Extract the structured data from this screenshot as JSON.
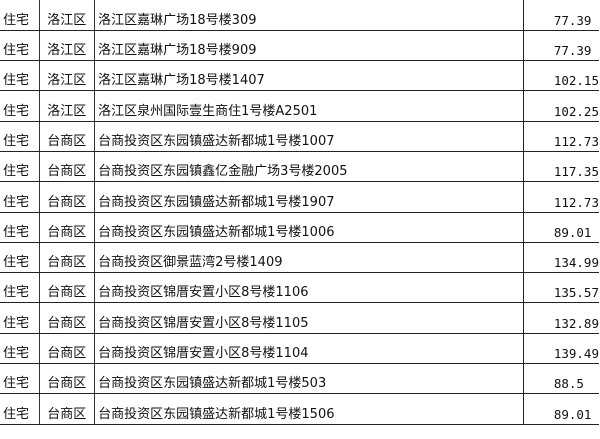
{
  "rows": [
    {
      "type": "住宅",
      "district": "洛江区",
      "address": "洛江区嘉琳广场18号楼309",
      "area": "77.39"
    },
    {
      "type": "住宅",
      "district": "洛江区",
      "address": "洛江区嘉琳广场18号楼909",
      "area": "77.39"
    },
    {
      "type": "住宅",
      "district": "洛江区",
      "address": "洛江区嘉琳广场18号楼1407",
      "area": "102.15"
    },
    {
      "type": "住宅",
      "district": "洛江区",
      "address": "洛江区泉州国际壹生商住1号楼A2501",
      "area": "102.25"
    },
    {
      "type": "住宅",
      "district": "台商区",
      "address": "台商投资区东园镇盛达新都城1号楼1007",
      "area": "112.73"
    },
    {
      "type": "住宅",
      "district": "台商区",
      "address": "台商投资区东园镇鑫亿金融广场3号楼2005",
      "area": "117.35"
    },
    {
      "type": "住宅",
      "district": "台商区",
      "address": "台商投资区东园镇盛达新都城1号楼1907",
      "area": "112.73"
    },
    {
      "type": "住宅",
      "district": "台商区",
      "address": "台商投资区东园镇盛达新都城1号楼1006",
      "area": "89.01"
    },
    {
      "type": "住宅",
      "district": "台商区",
      "address": "台商投资区御景蓝湾2号楼1409",
      "area": "134.99"
    },
    {
      "type": "住宅",
      "district": "台商区",
      "address": "台商投资区锦厝安置小区8号楼1106",
      "area": "135.57"
    },
    {
      "type": "住宅",
      "district": "台商区",
      "address": "台商投资区锦厝安置小区8号楼1105",
      "area": "132.89"
    },
    {
      "type": "住宅",
      "district": "台商区",
      "address": "台商投资区锦厝安置小区8号楼1104",
      "area": "139.49"
    },
    {
      "type": "住宅",
      "district": "台商区",
      "address": "台商投资区东园镇盛达新都城1号楼503",
      "area": "88.5"
    },
    {
      "type": "住宅",
      "district": "台商区",
      "address": "台商投资区东园镇盛达新都城1号楼1506",
      "area": "89.01"
    }
  ]
}
